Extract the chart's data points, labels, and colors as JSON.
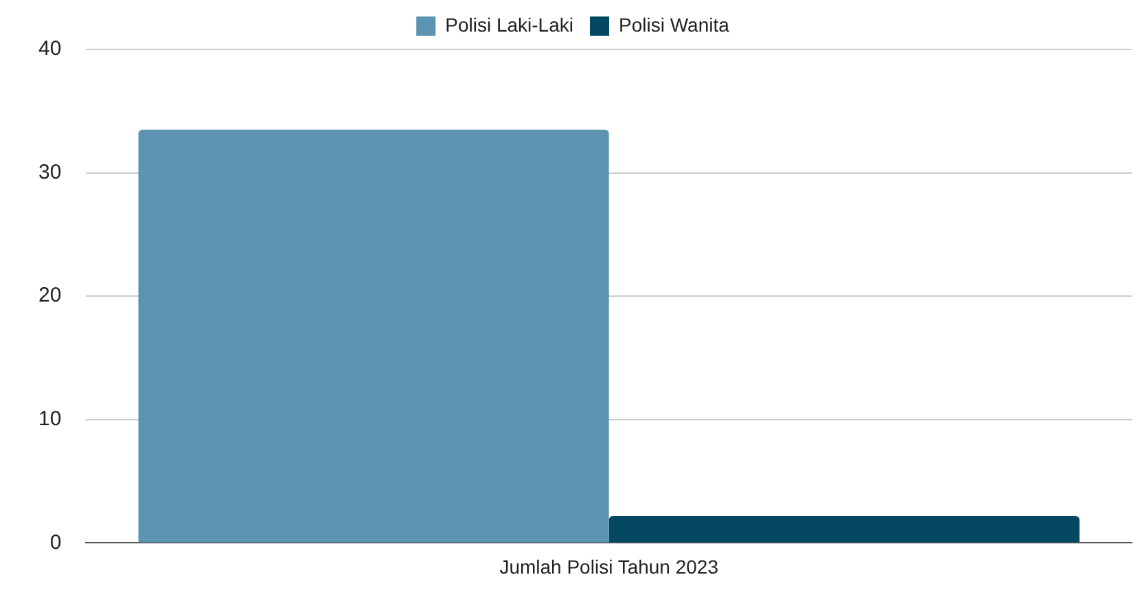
{
  "chart_data": {
    "type": "bar",
    "categories": [
      "Jumlah Polisi Tahun 2023"
    ],
    "series": [
      {
        "name": "Polisi Laki-Laki",
        "color": "#5b93b0",
        "values": [
          33.5
        ]
      },
      {
        "name": "Polisi Wanita",
        "color": "#054862",
        "values": [
          2.2
        ]
      }
    ],
    "ylim": [
      0,
      40
    ],
    "yticks": [
      0,
      10,
      20,
      30,
      40
    ],
    "grid": "y",
    "legend": "top"
  }
}
